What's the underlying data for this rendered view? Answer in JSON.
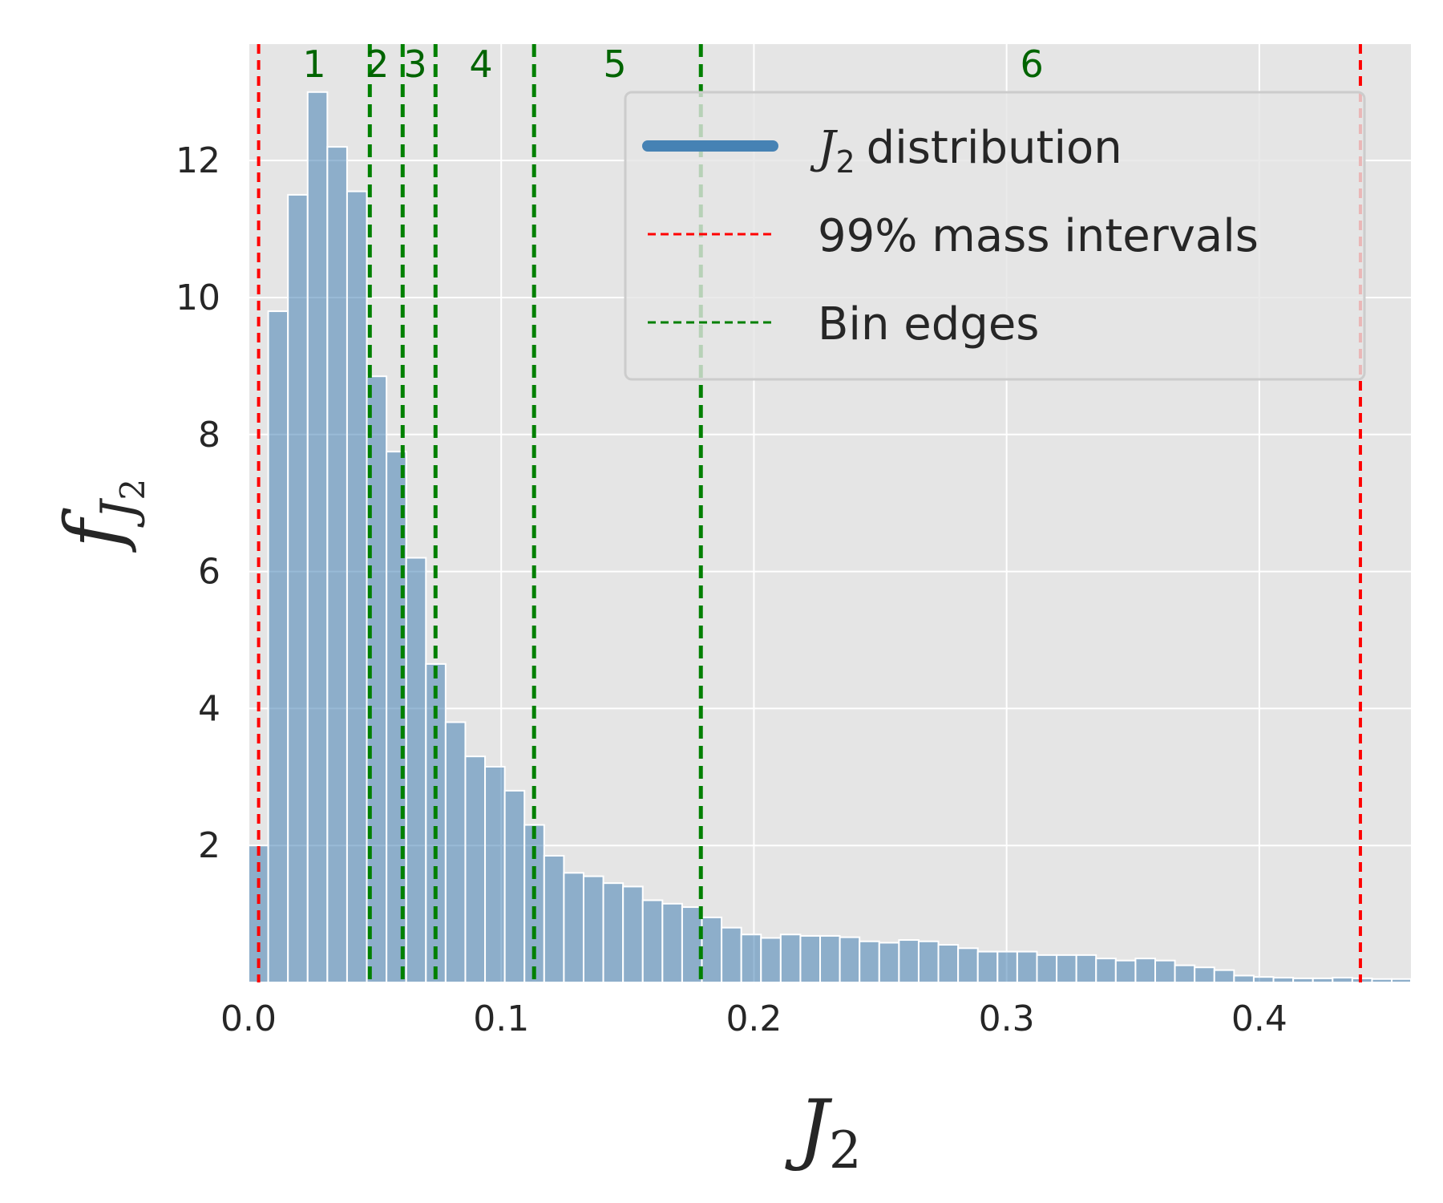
{
  "chart_data": {
    "type": "bar",
    "xlabel": "J",
    "xlabel_sub": "2",
    "ylabel": "f",
    "ylabel_sub": "J",
    "ylabel_subsub": "2",
    "xlim": [
      0.0,
      0.46
    ],
    "ylim": [
      0,
      13.7
    ],
    "xticks": [
      "0.0",
      "0.1",
      "0.2",
      "0.3",
      "0.4"
    ],
    "yticks": [
      "2",
      "4",
      "6",
      "8",
      "10",
      "12"
    ],
    "xtick_values": [
      0.0,
      0.1,
      0.2,
      0.3,
      0.4
    ],
    "ytick_values": [
      2,
      4,
      6,
      8,
      10,
      12
    ],
    "grid": true,
    "histogram": {
      "name": "J2 distribution",
      "color": "#4682b4",
      "bin_start": 0.0,
      "bin_width": 0.0078,
      "values": [
        2.0,
        9.8,
        11.5,
        13.0,
        12.2,
        11.55,
        8.85,
        7.75,
        6.2,
        4.65,
        3.8,
        3.3,
        3.15,
        2.8,
        2.3,
        1.85,
        1.6,
        1.55,
        1.45,
        1.4,
        1.2,
        1.15,
        1.1,
        0.95,
        0.8,
        0.7,
        0.65,
        0.7,
        0.68,
        0.68,
        0.66,
        0.6,
        0.58,
        0.62,
        0.6,
        0.55,
        0.5,
        0.45,
        0.45,
        0.45,
        0.4,
        0.4,
        0.4,
        0.35,
        0.32,
        0.35,
        0.32,
        0.25,
        0.22,
        0.18,
        0.1,
        0.08,
        0.07,
        0.06,
        0.06,
        0.07,
        0.06,
        0.05,
        0.05
      ]
    },
    "mass_interval_lines": {
      "name": "99% mass intervals",
      "color": "#ff0000",
      "x": [
        0.004,
        0.44
      ]
    },
    "bin_edge_lines": {
      "name": "Bin edges",
      "color": "#008000",
      "x": [
        0.048,
        0.061,
        0.074,
        0.113,
        0.179
      ]
    },
    "bin_labels": [
      {
        "text": "1",
        "x": 0.026
      },
      {
        "text": "2",
        "x": 0.051
      },
      {
        "text": "3",
        "x": 0.066
      },
      {
        "text": "4",
        "x": 0.092
      },
      {
        "text": "5",
        "x": 0.145
      },
      {
        "text": "6",
        "x": 0.31
      }
    ],
    "legend": {
      "placement": "top-right",
      "entries": [
        {
          "label": "distribution",
          "math": "J",
          "math_sub": "2",
          "color": "#4682b4",
          "style": "solid-thick"
        },
        {
          "label": "99% mass intervals",
          "color": "#ff0000",
          "style": "dashed"
        },
        {
          "label": "Bin edges",
          "color": "#008000",
          "style": "dashed"
        }
      ]
    }
  }
}
